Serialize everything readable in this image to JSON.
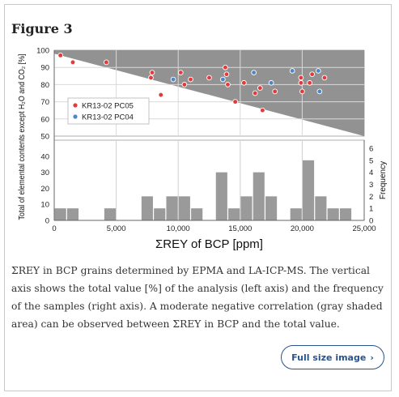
{
  "figure": {
    "title": "Figure 3",
    "caption": "ΣREY in BCP grains determined by EPMA and LA-ICP-MS. The vertical axis shows the total value [%] of the analysis (left axis) and the frequency of the samples (right axis). A moderate negative correlation (gray shaded area) can be observed between ΣREY in BCP and the total value.",
    "button_label": "Full size image",
    "button_icon": "chevron-right-icon"
  },
  "chart_data": {
    "type": "scatter",
    "xlabel": "ΣREY of BCP [ppm]",
    "ylabel_left": "Total of elemental contents except H₂O and CO₂ [%]",
    "ylabel_right": "Frequency",
    "xlim": [
      0,
      25000
    ],
    "x_ticks": [
      "0",
      "5,000",
      "10,000",
      "15,000",
      "20,000",
      "25,000"
    ],
    "x_tick_values": [
      0,
      5000,
      10000,
      15000,
      20000,
      25000
    ],
    "scatter_ylim": [
      50,
      100
    ],
    "scatter_y_ticks": [
      "50",
      "60",
      "70",
      "80",
      "90",
      "100"
    ],
    "scatter_y_tick_values": [
      50,
      60,
      70,
      80,
      90,
      100
    ],
    "hist_left_ylim": [
      0,
      45
    ],
    "hist_left_ticks": [
      "0",
      "10",
      "20",
      "30",
      "40"
    ],
    "hist_left_tick_values": [
      0,
      10,
      20,
      30,
      40
    ],
    "hist_right_ylim": [
      0,
      6
    ],
    "hist_right_ticks": [
      "0",
      "1",
      "2",
      "3",
      "4",
      "5",
      "6"
    ],
    "hist_right_tick_values": [
      0,
      1,
      2,
      3,
      4,
      5,
      6
    ],
    "grid": true,
    "legend_position": "left",
    "shaded_region": {
      "color": "#8c8c8c",
      "upper": [
        [
          0,
          100
        ],
        [
          25000,
          100
        ]
      ],
      "lower": [
        [
          0,
          98
        ],
        [
          25000,
          50
        ]
      ]
    },
    "series": [
      {
        "name": "KR13-02 PC05",
        "color": "#e23b3b",
        "points": [
          [
            500,
            97
          ],
          [
            1500,
            93
          ],
          [
            4200,
            93
          ],
          [
            7800,
            84
          ],
          [
            7900,
            87
          ],
          [
            8600,
            74
          ],
          [
            10200,
            87
          ],
          [
            10500,
            80
          ],
          [
            11000,
            83
          ],
          [
            12500,
            84
          ],
          [
            13800,
            90
          ],
          [
            13900,
            86
          ],
          [
            14000,
            80
          ],
          [
            14600,
            70
          ],
          [
            15300,
            81
          ],
          [
            16200,
            75
          ],
          [
            16600,
            78
          ],
          [
            16800,
            65
          ],
          [
            17800,
            76
          ],
          [
            19900,
            84
          ],
          [
            19900,
            81
          ],
          [
            20000,
            76
          ],
          [
            20600,
            81
          ],
          [
            20800,
            86
          ],
          [
            21800,
            84
          ]
        ]
      },
      {
        "name": "KR13-02 PC04",
        "color": "#4f86c6",
        "points": [
          [
            9600,
            83
          ],
          [
            13600,
            83
          ],
          [
            16100,
            87
          ],
          [
            17500,
            81
          ],
          [
            19200,
            88
          ],
          [
            21300,
            88
          ],
          [
            21400,
            76
          ]
        ]
      }
    ],
    "histogram": {
      "bin_width": 1000,
      "bins": [
        {
          "start": 0,
          "count": 1
        },
        {
          "start": 1000,
          "count": 1
        },
        {
          "start": 4000,
          "count": 1
        },
        {
          "start": 7000,
          "count": 2
        },
        {
          "start": 8000,
          "count": 1
        },
        {
          "start": 9000,
          "count": 2
        },
        {
          "start": 10000,
          "count": 2
        },
        {
          "start": 11000,
          "count": 1
        },
        {
          "start": 13000,
          "count": 4
        },
        {
          "start": 14000,
          "count": 1
        },
        {
          "start": 15000,
          "count": 2
        },
        {
          "start": 16000,
          "count": 4
        },
        {
          "start": 17000,
          "count": 2
        },
        {
          "start": 19000,
          "count": 1
        },
        {
          "start": 20000,
          "count": 5
        },
        {
          "start": 21000,
          "count": 2
        },
        {
          "start": 22000,
          "count": 1
        },
        {
          "start": 23000,
          "count": 1
        }
      ],
      "color": "#9a9a9a"
    }
  }
}
